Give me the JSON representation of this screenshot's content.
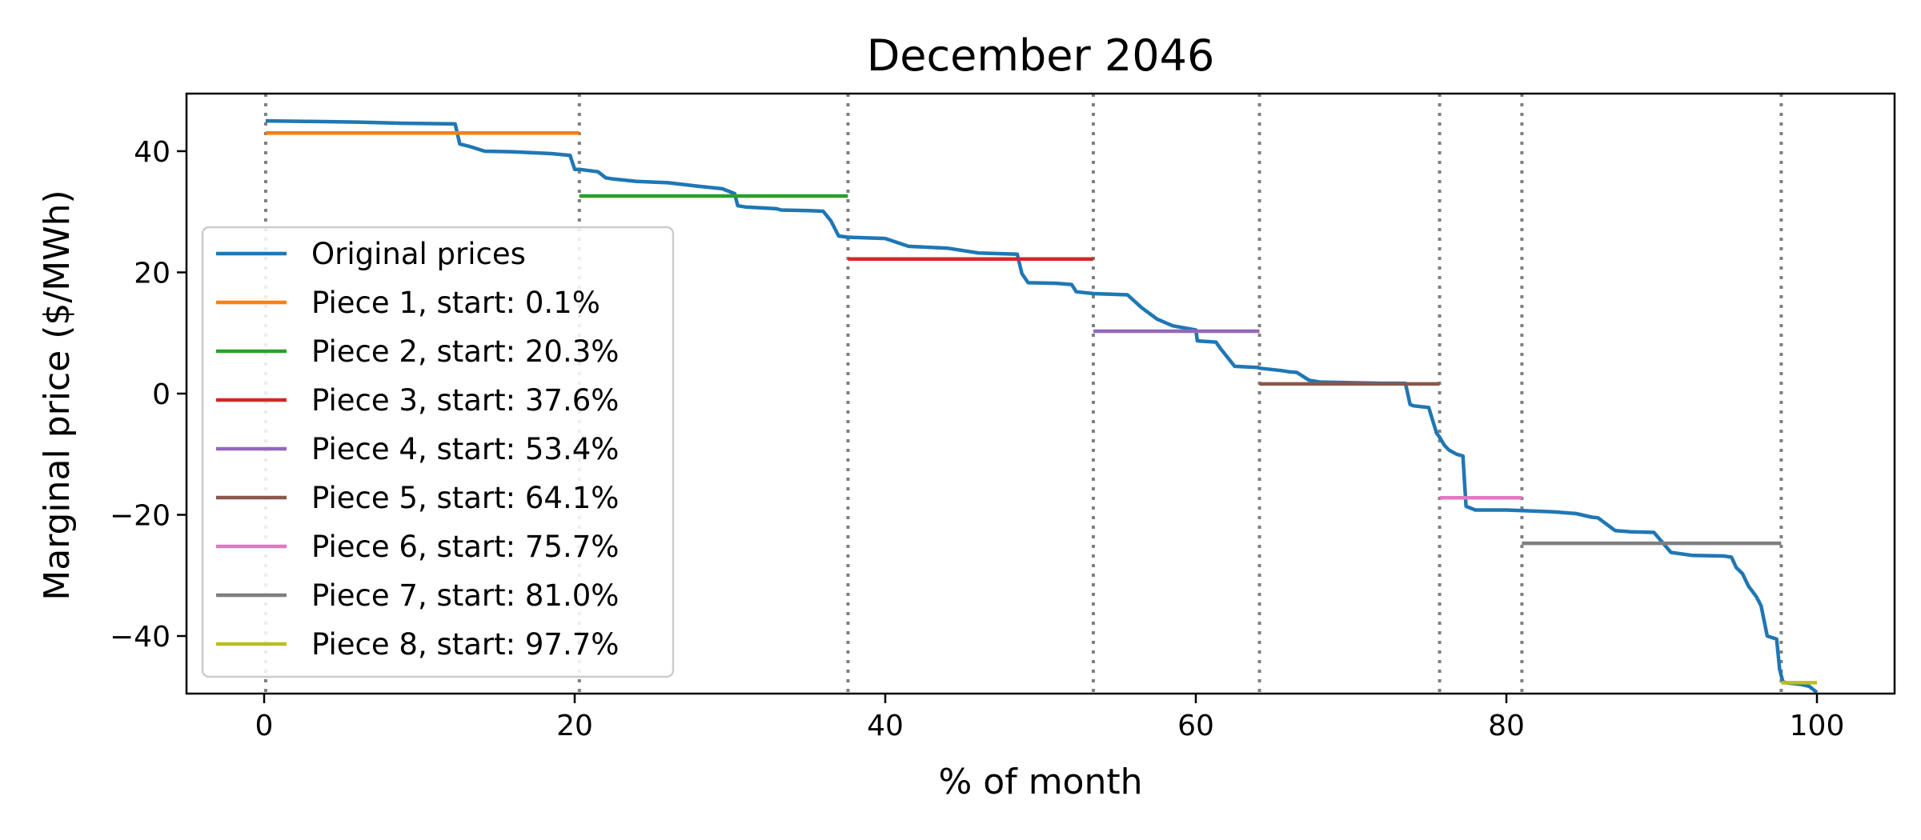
{
  "chart_data": {
    "type": "line",
    "title": "December 2046",
    "xlabel": "% of month",
    "ylabel": "Marginal price ($/MWh)",
    "xlim": [
      -5,
      105
    ],
    "ylim": [
      -49.5,
      49.5
    ],
    "xticks": [
      0,
      20,
      40,
      60,
      80,
      100
    ],
    "yticks": [
      -40,
      -20,
      0,
      20,
      40
    ],
    "grid": false,
    "legend_position": "center-left",
    "series": [
      {
        "name": "Original prices",
        "color": "#1f77b4",
        "x": [
          0.1,
          3,
          6,
          9,
          12.3,
          12.6,
          13.2,
          14.2,
          16,
          18.5,
          19.7,
          20,
          20.3,
          21.5,
          22,
          22.5,
          24,
          26,
          28,
          29.5,
          30.3,
          30.5,
          31,
          33,
          33.3,
          35,
          36,
          36.5,
          37,
          37.6,
          40,
          41.5,
          44,
          46,
          48.5,
          48.8,
          49.2,
          51,
          52,
          52.3,
          53.4,
          55.6,
          56.5,
          57.5,
          58.5,
          60,
          60.1,
          61.3,
          61.6,
          62.5,
          64,
          64.1,
          65.5,
          66,
          66.5,
          67.3,
          68,
          70,
          72,
          73.5,
          73.8,
          74,
          75,
          75.3,
          75.5,
          75.7,
          76,
          76.3,
          76.8,
          77.2,
          77.4,
          78,
          79,
          80,
          81,
          83,
          84.5,
          85.5,
          85.9,
          87,
          88,
          89.5,
          90.2,
          90.6,
          92,
          94,
          94.5,
          94.8,
          95.2,
          95.6,
          96.1,
          96.4,
          96.8,
          97.4,
          97.6,
          97.8,
          98,
          99,
          99.5,
          100
        ],
        "y": [
          45,
          44.9,
          44.8,
          44.6,
          44.5,
          41.2,
          40.8,
          40,
          39.9,
          39.6,
          39.3,
          37,
          37,
          36.6,
          35.6,
          35.4,
          35,
          34.8,
          34.2,
          33.8,
          33,
          31,
          30.8,
          30.5,
          30.3,
          30.2,
          30.1,
          28.5,
          26,
          25.8,
          25.6,
          24.3,
          24,
          23.2,
          23,
          19.8,
          18.3,
          18.2,
          18,
          16.8,
          16.5,
          16.3,
          14.2,
          12.3,
          11.2,
          10.5,
          8.7,
          8.5,
          7.4,
          4.5,
          4.3,
          4.2,
          3.8,
          3.6,
          3.5,
          2.2,
          1.9,
          1.8,
          1.7,
          1.7,
          -1.8,
          -2,
          -2.3,
          -4.8,
          -6.5,
          -7.2,
          -8.5,
          -9.3,
          -10,
          -10.3,
          -18.6,
          -19.2,
          -19.2,
          -19.2,
          -19.3,
          -19.5,
          -19.8,
          -20.4,
          -20.5,
          -22.6,
          -22.8,
          -22.9,
          -25,
          -26.2,
          -26.7,
          -26.8,
          -27,
          -28.7,
          -29.7,
          -31.8,
          -33.5,
          -35,
          -40,
          -40.5,
          -45.5,
          -47.5,
          -47.7,
          -48,
          -48.3,
          -49.3
        ]
      },
      {
        "name": "Piece 1, start: 0.1%",
        "color": "#ff7f0e",
        "x": [
          0.1,
          20.3
        ],
        "y": [
          43,
          43
        ]
      },
      {
        "name": "Piece 2, start: 20.3%",
        "color": "#2ca02c",
        "x": [
          20.3,
          37.6
        ],
        "y": [
          32.6,
          32.6
        ]
      },
      {
        "name": "Piece 3, start: 37.6%",
        "color": "#d62728",
        "x": [
          37.6,
          53.4
        ],
        "y": [
          22.2,
          22.2
        ]
      },
      {
        "name": "Piece 4, start: 53.4%",
        "color": "#9467bd",
        "x": [
          53.4,
          64.1
        ],
        "y": [
          10.3,
          10.3
        ]
      },
      {
        "name": "Piece 5, start: 64.1%",
        "color": "#8c564b",
        "x": [
          64.1,
          75.7
        ],
        "y": [
          1.6,
          1.6
        ]
      },
      {
        "name": "Piece 6, start: 75.7%",
        "color": "#e377c2",
        "x": [
          75.7,
          81.0
        ],
        "y": [
          -17.2,
          -17.2
        ]
      },
      {
        "name": "Piece 7, start: 81.0%",
        "color": "#7f7f7f",
        "x": [
          81.0,
          97.7
        ],
        "y": [
          -24.7,
          -24.7
        ]
      },
      {
        "name": "Piece 8, start: 97.7%",
        "color": "#bcbd22",
        "x": [
          97.7,
          100
        ],
        "y": [
          -47.7,
          -47.7
        ]
      }
    ],
    "vlines": {
      "x": [
        0.1,
        20.3,
        37.6,
        53.4,
        64.1,
        75.7,
        81.0,
        97.7
      ],
      "color": "#7f7f7f",
      "style": "dotted"
    }
  }
}
